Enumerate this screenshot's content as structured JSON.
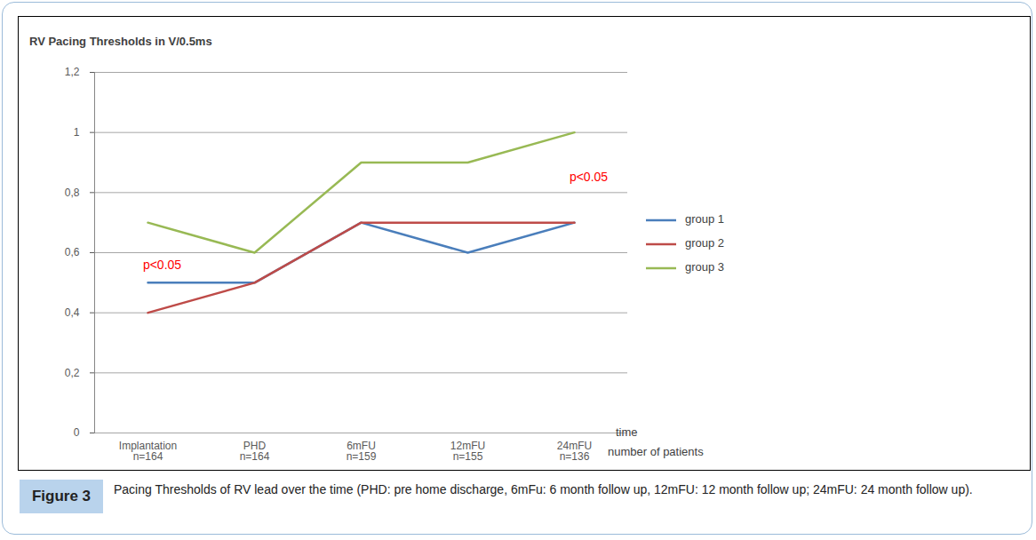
{
  "chart_data": {
    "type": "line",
    "title": "RV Pacing Thresholds in V/0.5ms",
    "categories": [
      "Implantation",
      "PHD",
      "6mFU",
      "12mFU",
      "24mFU"
    ],
    "category_sublabels": [
      "n=164",
      "n=164",
      "n=159",
      "n=155",
      "n=136"
    ],
    "x_label": "time",
    "x_sublabel": "number of patients",
    "series": [
      {
        "name": "group 1",
        "color": "#4a7ebb",
        "values": [
          0.5,
          0.5,
          0.7,
          0.6,
          0.7
        ]
      },
      {
        "name": "group 2",
        "color": "#be4b48",
        "values": [
          0.4,
          0.5,
          0.7,
          0.7,
          0.7
        ]
      },
      {
        "name": "group 3",
        "color": "#98b954",
        "values": [
          0.7,
          0.6,
          0.9,
          0.9,
          1.0
        ]
      }
    ],
    "ylim": [
      0,
      1.2
    ],
    "yticks": [
      0,
      {
        "value": 0.2,
        "label": "0,2"
      },
      {
        "value": 0.4,
        "label": "0,4"
      },
      {
        "value": 0.6,
        "label": "0,6"
      },
      {
        "value": 0.8,
        "label": "0,8"
      },
      1,
      {
        "value": 1.2,
        "label": "1,2"
      }
    ],
    "grid": true,
    "legend": "right",
    "annotations": [
      {
        "text": "p<0.05",
        "x": "Implantation",
        "y": 0.56,
        "color": "#ff0000"
      },
      {
        "text": "p<0.05",
        "x": "24mFU",
        "y": 0.85,
        "color": "#ff0000"
      }
    ],
    "caption_label": "Figure 3",
    "caption": "Pacing Thresholds of RV lead over the time (PHD: pre home discharge, 6mFu: 6 month follow up, 12mFU: 12 month follow up; 24mFU: 24 month follow up)."
  }
}
